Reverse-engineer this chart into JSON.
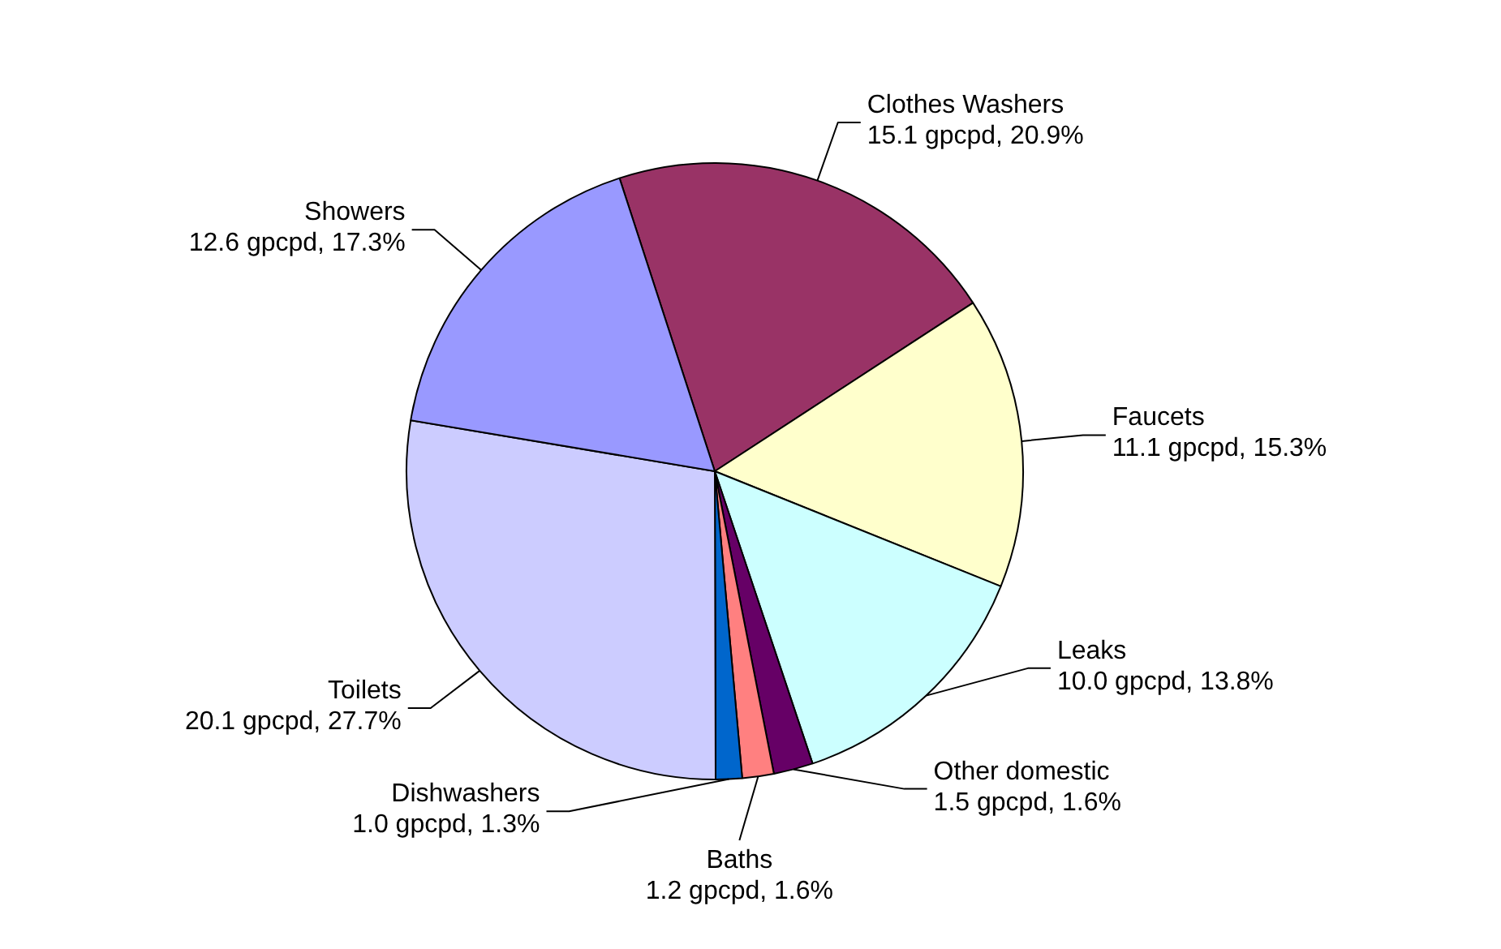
{
  "chart_data": {
    "type": "pie",
    "categories": [
      "Clothes Washers",
      "Faucets",
      "Leaks",
      "Other domestic",
      "Baths",
      "Dishwashers",
      "Toilets",
      "Showers"
    ],
    "values": [
      15.1,
      11.1,
      10.0,
      1.5,
      1.2,
      1.0,
      20.1,
      12.6
    ],
    "colors": [
      "#993366",
      "#ffffcc",
      "#ccffff",
      "#660066",
      "#ff8080",
      "#0066cc",
      "#ccccff",
      "#9999ff"
    ],
    "value_labels": [
      "15.1 gpcpd, 20.9%",
      "11.1 gpcpd, 15.3%",
      "10.0 gpcpd, 13.8%",
      "1.5 gpcpd, 1.6%",
      "1.2 gpcpd, 1.6%",
      "1.0 gpcpd, 1.3%",
      "20.1 gpcpd, 27.7%",
      "12.6 gpcpd, 17.3%"
    ]
  }
}
